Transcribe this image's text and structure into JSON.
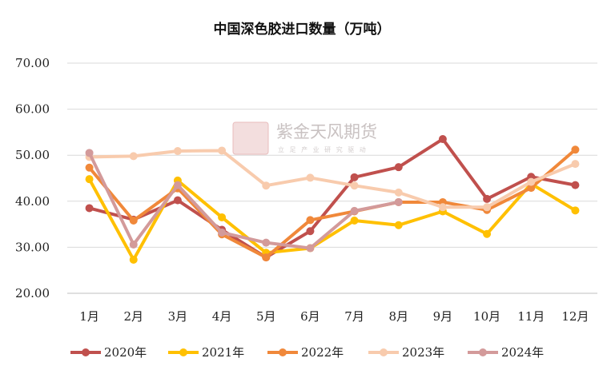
{
  "watermark": {
    "name": "紫金天风期货",
    "slogan": "立 足 产 业   研 究 驱 动",
    "seal_text": "紫天金风"
  },
  "chart_data": {
    "type": "line",
    "title": "中国深色胶进口数量（万吨）",
    "xlabel": "",
    "ylabel": "",
    "categories": [
      "1月",
      "2月",
      "3月",
      "4月",
      "5月",
      "6月",
      "7月",
      "8月",
      "9月",
      "10月",
      "11月",
      "12月"
    ],
    "ylim": [
      20,
      70
    ],
    "yticks": [
      "20.00",
      "30.00",
      "40.00",
      "50.00",
      "60.00",
      "70.00"
    ],
    "grid": true,
    "legend_position": "bottom",
    "series": [
      {
        "name": "2020年",
        "color": "#c0504d",
        "values": [
          38.5,
          36.0,
          40.2,
          33.8,
          27.8,
          33.5,
          45.2,
          47.4,
          53.5,
          40.5,
          45.3,
          43.5
        ]
      },
      {
        "name": "2021年",
        "color": "#ffc000",
        "values": [
          44.8,
          27.3,
          44.5,
          36.5,
          28.8,
          29.8,
          35.8,
          34.8,
          37.8,
          32.9,
          43.8,
          38.0
        ]
      },
      {
        "name": "2022年",
        "color": "#f0883a",
        "values": [
          47.3,
          35.8,
          42.8,
          32.8,
          27.8,
          35.9,
          37.8,
          39.8,
          39.8,
          38.1,
          42.9,
          51.2
        ]
      },
      {
        "name": "2023年",
        "color": "#f8cbad",
        "values": [
          49.6,
          49.8,
          50.9,
          51.0,
          43.4,
          45.1,
          43.4,
          41.9,
          38.7,
          38.7,
          44.2,
          48.1
        ]
      },
      {
        "name": "2024年",
        "color": "#d39a9a",
        "values": [
          50.5,
          30.6,
          43.5,
          33.2,
          31.0,
          29.8,
          37.9,
          39.8,
          null,
          null,
          null,
          null
        ]
      }
    ]
  }
}
